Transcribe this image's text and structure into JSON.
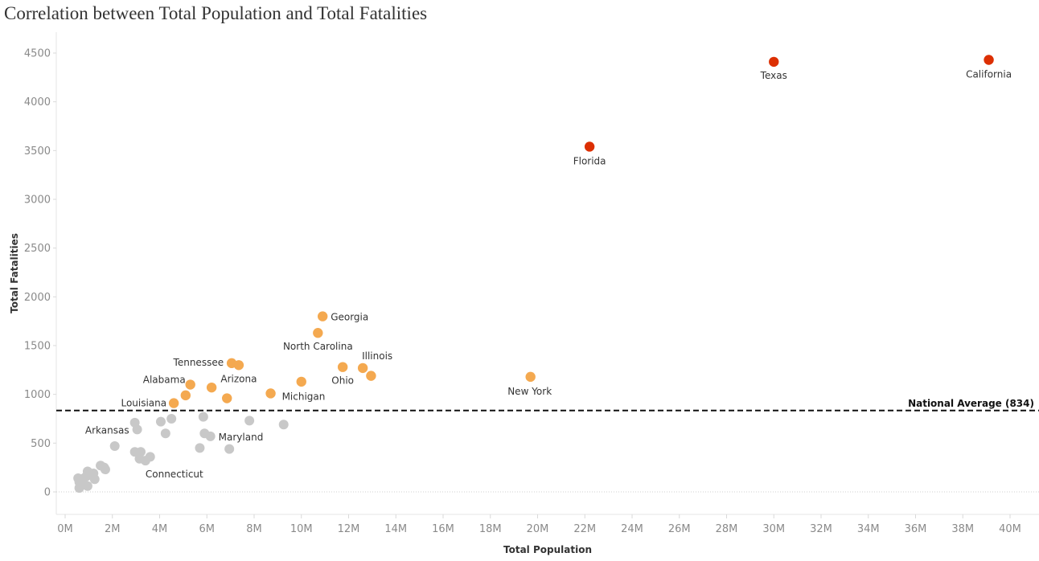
{
  "chart_data": {
    "type": "scatter",
    "title": "Correlation between Total Population and Total Fatalities",
    "xlabel": "Total Population",
    "ylabel": "Total Fatalities",
    "xlim": [
      0,
      41000000
    ],
    "ylim": [
      -230,
      4700
    ],
    "x_ticks": [
      0,
      2000000,
      4000000,
      6000000,
      8000000,
      10000000,
      12000000,
      14000000,
      16000000,
      18000000,
      20000000,
      22000000,
      24000000,
      26000000,
      28000000,
      30000000,
      32000000,
      34000000,
      36000000,
      38000000,
      40000000
    ],
    "x_tick_labels": [
      "0M",
      "2M",
      "4M",
      "6M",
      "8M",
      "10M",
      "12M",
      "14M",
      "16M",
      "18M",
      "20M",
      "22M",
      "24M",
      "26M",
      "28M",
      "30M",
      "32M",
      "34M",
      "36M",
      "38M",
      "40M"
    ],
    "y_ticks": [
      0,
      500,
      1000,
      1500,
      2000,
      2500,
      3000,
      3500,
      4000,
      4500
    ],
    "y_tick_labels": [
      "0",
      "500",
      "1000",
      "1500",
      "2000",
      "2500",
      "3000",
      "3500",
      "4000",
      "4500"
    ],
    "colors": {
      "high": "#dc2f02",
      "mid": "#f4a950",
      "low": "#c8c8c8"
    },
    "reference_line": {
      "value": 834,
      "label": "National Average (834)"
    },
    "points": [
      {
        "x": 39100000,
        "y": 4430,
        "group": "high",
        "label": "California"
      },
      {
        "x": 30000000,
        "y": 4410,
        "group": "high",
        "label": "Texas"
      },
      {
        "x": 22200000,
        "y": 3540,
        "group": "high",
        "label": "Florida"
      },
      {
        "x": 10900000,
        "y": 1800,
        "group": "mid",
        "label": "Georgia"
      },
      {
        "x": 10700000,
        "y": 1630,
        "group": "mid",
        "label": "North Carolina"
      },
      {
        "x": 12600000,
        "y": 1270,
        "group": "mid",
        "label": "Illinois"
      },
      {
        "x": 12950000,
        "y": 1190,
        "group": "mid",
        "label": ""
      },
      {
        "x": 11750000,
        "y": 1280,
        "group": "mid",
        "label": "Ohio"
      },
      {
        "x": 19700000,
        "y": 1180,
        "group": "mid",
        "label": "New York"
      },
      {
        "x": 7050000,
        "y": 1320,
        "group": "mid",
        "label": "Tennessee"
      },
      {
        "x": 7350000,
        "y": 1300,
        "group": "mid",
        "label": "Arizona"
      },
      {
        "x": 10000000,
        "y": 1130,
        "group": "mid",
        "label": ""
      },
      {
        "x": 8700000,
        "y": 1010,
        "group": "mid",
        "label": "Michigan"
      },
      {
        "x": 6200000,
        "y": 1070,
        "group": "mid",
        "label": ""
      },
      {
        "x": 6850000,
        "y": 960,
        "group": "mid",
        "label": ""
      },
      {
        "x": 5300000,
        "y": 1100,
        "group": "mid",
        "label": "Alabama"
      },
      {
        "x": 5100000,
        "y": 990,
        "group": "mid",
        "label": ""
      },
      {
        "x": 4600000,
        "y": 910,
        "group": "mid",
        "label": "Louisiana"
      },
      {
        "x": 9250000,
        "y": 690,
        "group": "low",
        "label": ""
      },
      {
        "x": 7800000,
        "y": 730,
        "group": "low",
        "label": ""
      },
      {
        "x": 6950000,
        "y": 440,
        "group": "low",
        "label": ""
      },
      {
        "x": 6150000,
        "y": 570,
        "group": "low",
        "label": "Maryland"
      },
      {
        "x": 5900000,
        "y": 600,
        "group": "low",
        "label": ""
      },
      {
        "x": 5850000,
        "y": 770,
        "group": "low",
        "label": ""
      },
      {
        "x": 5700000,
        "y": 450,
        "group": "low",
        "label": ""
      },
      {
        "x": 4500000,
        "y": 750,
        "group": "low",
        "label": ""
      },
      {
        "x": 4050000,
        "y": 720,
        "group": "low",
        "label": ""
      },
      {
        "x": 4250000,
        "y": 600,
        "group": "low",
        "label": ""
      },
      {
        "x": 3050000,
        "y": 640,
        "group": "low",
        "label": "Arkansas"
      },
      {
        "x": 2950000,
        "y": 710,
        "group": "low",
        "label": ""
      },
      {
        "x": 2100000,
        "y": 470,
        "group": "low",
        "label": ""
      },
      {
        "x": 3200000,
        "y": 410,
        "group": "low",
        "label": ""
      },
      {
        "x": 2950000,
        "y": 410,
        "group": "low",
        "label": ""
      },
      {
        "x": 3600000,
        "y": 360,
        "group": "low",
        "label": ""
      },
      {
        "x": 3150000,
        "y": 340,
        "group": "low",
        "label": ""
      },
      {
        "x": 3400000,
        "y": 320,
        "group": "low",
        "label": "Connecticut"
      },
      {
        "x": 1500000,
        "y": 270,
        "group": "low",
        "label": ""
      },
      {
        "x": 1650000,
        "y": 250,
        "group": "low",
        "label": ""
      },
      {
        "x": 1700000,
        "y": 230,
        "group": "low",
        "label": ""
      },
      {
        "x": 950000,
        "y": 210,
        "group": "low",
        "label": ""
      },
      {
        "x": 1200000,
        "y": 190,
        "group": "low",
        "label": ""
      },
      {
        "x": 900000,
        "y": 160,
        "group": "low",
        "label": ""
      },
      {
        "x": 800000,
        "y": 140,
        "group": "low",
        "label": ""
      },
      {
        "x": 550000,
        "y": 140,
        "group": "low",
        "label": ""
      },
      {
        "x": 1250000,
        "y": 130,
        "group": "low",
        "label": ""
      },
      {
        "x": 600000,
        "y": 100,
        "group": "low",
        "label": ""
      },
      {
        "x": 950000,
        "y": 60,
        "group": "low",
        "label": ""
      },
      {
        "x": 600000,
        "y": 40,
        "group": "low",
        "label": ""
      }
    ]
  }
}
